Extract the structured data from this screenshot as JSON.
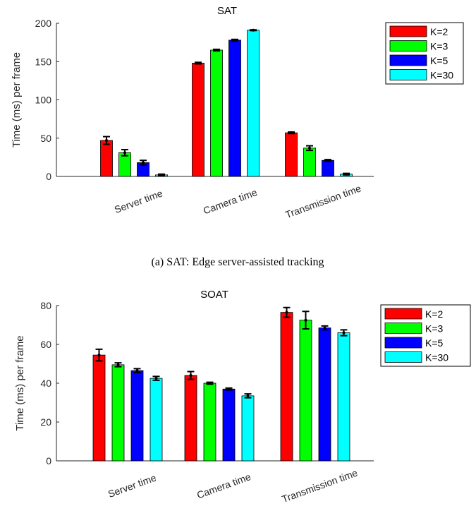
{
  "colors": {
    "K=2": "#ff0000",
    "K=3": "#00ff00",
    "K=5": "#0000ff",
    "K=30": "#00ffff"
  },
  "chart_data": [
    {
      "type": "bar",
      "title": "SAT",
      "xlabel": "",
      "ylabel": "Time (ms) per frame",
      "ylim": [
        0,
        200
      ],
      "yticks": [
        0,
        50,
        100,
        150,
        200
      ],
      "categories": [
        "Server time",
        "Camera time",
        "Transmission time"
      ],
      "series": [
        {
          "name": "K=2",
          "values": [
            47,
            148,
            57
          ],
          "errors": [
            5,
            1,
            1
          ]
        },
        {
          "name": "K=3",
          "values": [
            31,
            165,
            37
          ],
          "errors": [
            4,
            1,
            3
          ]
        },
        {
          "name": "K=5",
          "values": [
            18,
            178,
            21
          ],
          "errors": [
            3,
            1,
            1
          ]
        },
        {
          "name": "K=30",
          "values": [
            2,
            191,
            3
          ],
          "errors": [
            1,
            0.5,
            1
          ]
        }
      ],
      "legend": "outside-top-right",
      "grid": false,
      "caption": "(a) SAT: Edge server-assisted tracking"
    },
    {
      "type": "bar",
      "title": "SOAT",
      "xlabel": "",
      "ylabel": "Time (ms) per frame",
      "ylim": [
        0,
        80
      ],
      "yticks": [
        0,
        20,
        40,
        60,
        80
      ],
      "categories": [
        "Server time",
        "Camera time",
        "Transmission time"
      ],
      "series": [
        {
          "name": "K=2",
          "values": [
            54.5,
            44,
            76.5
          ],
          "errors": [
            3,
            2,
            2.5
          ]
        },
        {
          "name": "K=3",
          "values": [
            49.5,
            40,
            72.5
          ],
          "errors": [
            1,
            0.5,
            4.5
          ]
        },
        {
          "name": "K=5",
          "values": [
            46.5,
            37,
            68.5
          ],
          "errors": [
            1,
            0.5,
            1
          ]
        },
        {
          "name": "K=30",
          "values": [
            42.5,
            33.5,
            66
          ],
          "errors": [
            1,
            1,
            1.5
          ]
        }
      ],
      "legend": "outside-top-right",
      "grid": false
    }
  ]
}
